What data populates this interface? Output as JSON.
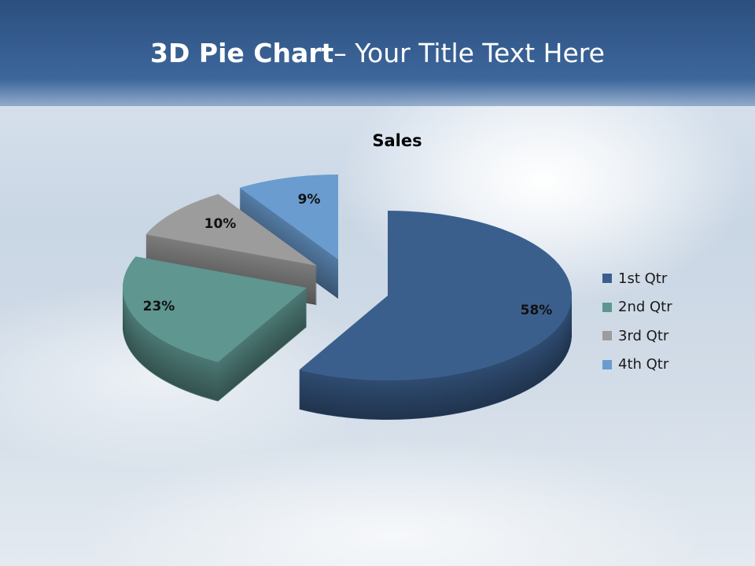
{
  "slide_title": {
    "bold": "3D Pie Chart",
    "rest": "– Your Title Text Here"
  },
  "chart_data": {
    "type": "pie",
    "three_d": true,
    "title": "Sales",
    "categories": [
      "1st Qtr",
      "2nd Qtr",
      "3rd Qtr",
      "4th Qtr"
    ],
    "values": [
      58,
      23,
      10,
      9
    ],
    "data_labels": [
      "58%",
      "23%",
      "10%",
      "9%"
    ],
    "colors": [
      "#3b5f8d",
      "#5f9690",
      "#9c9c9c",
      "#6a9ccf"
    ],
    "legend_position": "right",
    "exploded": [
      "2nd Qtr",
      "3rd Qtr",
      "4th Qtr"
    ]
  }
}
